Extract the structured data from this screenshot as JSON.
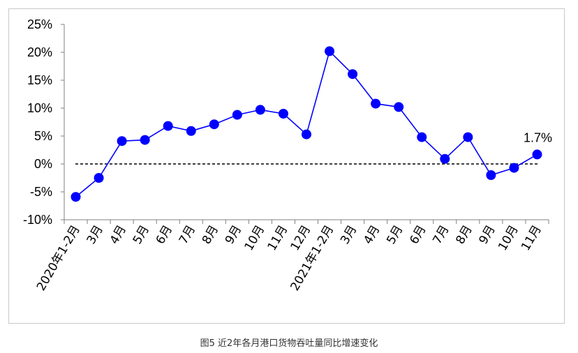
{
  "caption": "图5 近2年各月港口货物吞吐量同比增速变化",
  "chart_data": {
    "type": "line",
    "title": "",
    "xlabel": "",
    "ylabel": "",
    "categories": [
      "2020年1-2月",
      "3月",
      "4月",
      "5月",
      "6月",
      "7月",
      "8月",
      "9月",
      "10月",
      "11月",
      "12月",
      "2021年1-2月",
      "3月",
      "4月",
      "5月",
      "6月",
      "7月",
      "8月",
      "9月",
      "10月",
      "11月"
    ],
    "values": [
      -5.9,
      -2.5,
      4.1,
      4.3,
      6.8,
      5.9,
      7.1,
      8.8,
      9.7,
      9.0,
      5.3,
      20.2,
      16.1,
      10.8,
      10.2,
      4.8,
      0.9,
      4.8,
      -2.0,
      -0.7,
      1.7
    ],
    "ylim": [
      -10,
      25
    ],
    "ytick_labels": [
      "-10%",
      "-5%",
      "0%",
      "5%",
      "10%",
      "15%",
      "20%",
      "25%"
    ],
    "ytick_values": [
      -10,
      -5,
      0,
      5,
      10,
      15,
      20,
      25
    ],
    "line_color": "#0000ff",
    "marker_color": "#0000ff",
    "zero_line": "dashed",
    "grid": false,
    "annotations": [
      {
        "index": 20,
        "text": "1.7%"
      }
    ]
  }
}
